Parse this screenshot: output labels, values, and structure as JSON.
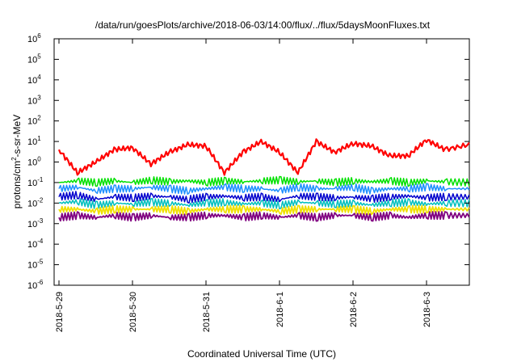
{
  "chart_data": {
    "type": "line",
    "title": "/data/run/goesPlots/archive/2018-06-03/14:00/flux/../flux/5daysMoonFluxes.txt",
    "xlabel": "Coordinated Universal Time (UTC)",
    "ylabel_parts": [
      "protons/cm",
      "2",
      "-s-sr-MeV"
    ],
    "y_scale": "log",
    "ylim": [
      1e-06,
      1000000.0
    ],
    "xlim": [
      "2018-05-29 00:00",
      "2018-06-03 14:00"
    ],
    "grid": false,
    "legend": "none",
    "x_ticks": [
      "2018-5-29",
      "2018-5-30",
      "2018-5-31",
      "2018-6-1",
      "2018-6-2",
      "2018-6-3"
    ],
    "y_ticks": [
      {
        "base": "10",
        "exp": "-6"
      },
      {
        "base": "10",
        "exp": "-5"
      },
      {
        "base": "10",
        "exp": "-4"
      },
      {
        "base": "10",
        "exp": "-3"
      },
      {
        "base": "10",
        "exp": "-2"
      },
      {
        "base": "10",
        "exp": "-1"
      },
      {
        "base": "10",
        "exp": "0"
      },
      {
        "base": "10",
        "exp": "1"
      },
      {
        "base": "10",
        "exp": "2"
      },
      {
        "base": "10",
        "exp": "3"
      },
      {
        "base": "10",
        "exp": "4"
      },
      {
        "base": "10",
        "exp": "5"
      },
      {
        "base": "10",
        "exp": "6"
      }
    ],
    "x_days": [
      0,
      0.25,
      0.5,
      0.75,
      1,
      1.25,
      1.5,
      1.75,
      2,
      2.25,
      2.5,
      2.75,
      3,
      3.25,
      3.5,
      3.75,
      4,
      4.25,
      4.5,
      4.75,
      5,
      5.25,
      5.58
    ],
    "series": [
      {
        "color": "#ff0000",
        "width": 2.2,
        "values": [
          4,
          0.3,
          1,
          4,
          5,
          0.8,
          3,
          7,
          6,
          0.3,
          3,
          10,
          3,
          0.3,
          10,
          3,
          8,
          6,
          2,
          2,
          12,
          4,
          7
        ]
      },
      {
        "color": "#00e000",
        "width": 1.5,
        "values": [
          0.1,
          0.12,
          0.1,
          0.12,
          0.1,
          0.13,
          0.11,
          0.12,
          0.1,
          0.12,
          0.11,
          0.12,
          0.13,
          0.11,
          0.12,
          0.1,
          0.12,
          0.11,
          0.12,
          0.1,
          0.12,
          0.11,
          0.1
        ]
      },
      {
        "color": "#1e90ff",
        "width": 1.5,
        "values": [
          0.05,
          0.06,
          0.04,
          0.05,
          0.05,
          0.06,
          0.05,
          0.04,
          0.05,
          0.06,
          0.05,
          0.05,
          0.04,
          0.06,
          0.05,
          0.05,
          0.06,
          0.04,
          0.05,
          0.05,
          0.06,
          0.05,
          0.05
        ]
      },
      {
        "color": "#0000cd",
        "width": 1.5,
        "values": [
          0.02,
          0.025,
          0.015,
          0.02,
          0.018,
          0.022,
          0.02,
          0.015,
          0.02,
          0.022,
          0.018,
          0.02,
          0.015,
          0.022,
          0.02,
          0.018,
          0.02,
          0.016,
          0.02,
          0.022,
          0.018,
          0.02,
          0.02
        ]
      },
      {
        "color": "#00bfbf",
        "width": 1.5,
        "values": [
          0.01,
          0.012,
          0.008,
          0.01,
          0.009,
          0.011,
          0.01,
          0.008,
          0.01,
          0.011,
          0.009,
          0.01,
          0.008,
          0.011,
          0.01,
          0.009,
          0.01,
          0.008,
          0.01,
          0.011,
          0.009,
          0.01,
          0.01
        ]
      },
      {
        "color": "#f0e000",
        "width": 1.8,
        "values": [
          0.005,
          0.005,
          0.004,
          0.005,
          0.005,
          0.005,
          0.005,
          0.004,
          0.005,
          0.005,
          0.005,
          0.005,
          0.004,
          0.005,
          0.005,
          0.005,
          0.005,
          0.004,
          0.005,
          0.005,
          0.005,
          0.005,
          0.005
        ]
      },
      {
        "color": "#800080",
        "width": 1.8,
        "values": [
          0.002,
          0.0025,
          0.002,
          0.0025,
          0.002,
          0.0025,
          0.002,
          0.002,
          0.0025,
          0.0025,
          0.002,
          0.0025,
          0.002,
          0.0025,
          0.002,
          0.0025,
          0.0025,
          0.002,
          0.0025,
          0.002,
          0.0025,
          0.0025,
          0.0025
        ]
      }
    ]
  }
}
